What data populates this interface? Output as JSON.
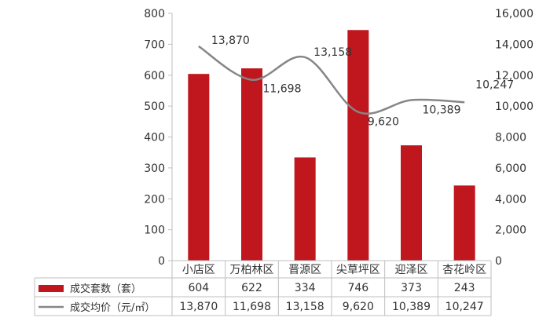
{
  "chart_data": {
    "type": "bar",
    "categories": [
      "小店区",
      "万柏林区",
      "晋源区",
      "尖草坪区",
      "迎泽区",
      "杏花岭区"
    ],
    "series": [
      {
        "name": "成交套数（套）",
        "type": "bar",
        "axis": "left",
        "color": "#C0161E",
        "values": [
          604,
          622,
          334,
          746,
          373,
          243
        ],
        "labels": [
          "604",
          "622",
          "334",
          "746",
          "373",
          "243"
        ]
      },
      {
        "name": "成交均价（元/㎡）",
        "type": "line",
        "smooth": true,
        "axis": "right",
        "color": "#868686",
        "values": [
          13870,
          11698,
          13158,
          9620,
          10389,
          10247
        ],
        "labels": [
          "13,870",
          "11,698",
          "13,158",
          "9,620",
          "10,389",
          "10,247"
        ]
      }
    ],
    "y_left": {
      "range": [
        0,
        800
      ],
      "ticks": [
        "0",
        "100",
        "200",
        "300",
        "400",
        "500",
        "600",
        "700",
        "800"
      ]
    },
    "y_right": {
      "range": [
        0,
        16000
      ],
      "ticks": [
        "0",
        "2,000",
        "4,000",
        "6,000",
        "8,000",
        "10,000",
        "12,000",
        "14,000",
        "16,000"
      ]
    },
    "legend_placement": "data-table",
    "grid": false
  }
}
